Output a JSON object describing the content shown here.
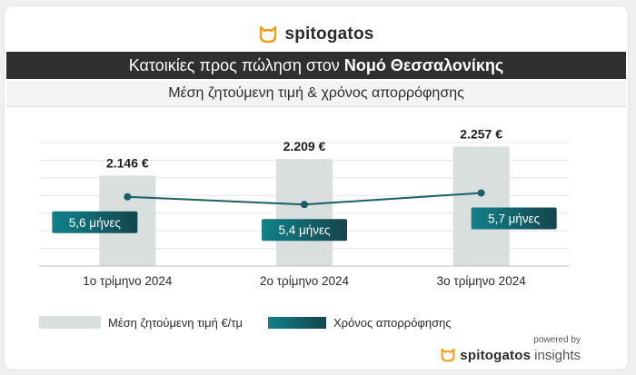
{
  "header": {
    "brand": "spitogatos",
    "title_prefix": "Κατοικίες προς πώληση στον",
    "title_region": "Νομό Θεσσαλονίκης",
    "subtitle": "Μέση ζητούμενη τιμή & χρόνος απορρόφησης"
  },
  "colors": {
    "bar": "#d9dedf",
    "line": "#1a5f66",
    "label_box_start": "#11818a",
    "label_box_end": "#15454d",
    "brand_orange": "#f39c12",
    "title_bg": "#2f2f2f"
  },
  "chart_data": {
    "type": "bar+line",
    "categories": [
      "1ο τρίμηνο 2024",
      "2ο τρίμηνο 2024",
      "3ο τρίμηνο 2024"
    ],
    "series": [
      {
        "name": "Μέση ζητούμενη τιμή €/τμ",
        "type": "bar",
        "values": [
          2146,
          2209,
          2257
        ],
        "labels": [
          "2.146 €",
          "2.209 €",
          "2.257 €"
        ]
      },
      {
        "name": "Χρόνος απορρόφησης",
        "type": "line",
        "values": [
          5.6,
          5.4,
          5.7
        ],
        "labels": [
          "5,6 μήνες",
          "5,4 μήνες",
          "5,7 μήνες"
        ]
      }
    ],
    "bar_axis_range": [
      1800,
      2300
    ],
    "line_axis_range": [
      3.8,
      7.2
    ],
    "grid": true,
    "legend": "bottom-left"
  },
  "footer": {
    "powered_by": "powered by",
    "brand": "spitogatos",
    "brand_suffix": "insights"
  }
}
